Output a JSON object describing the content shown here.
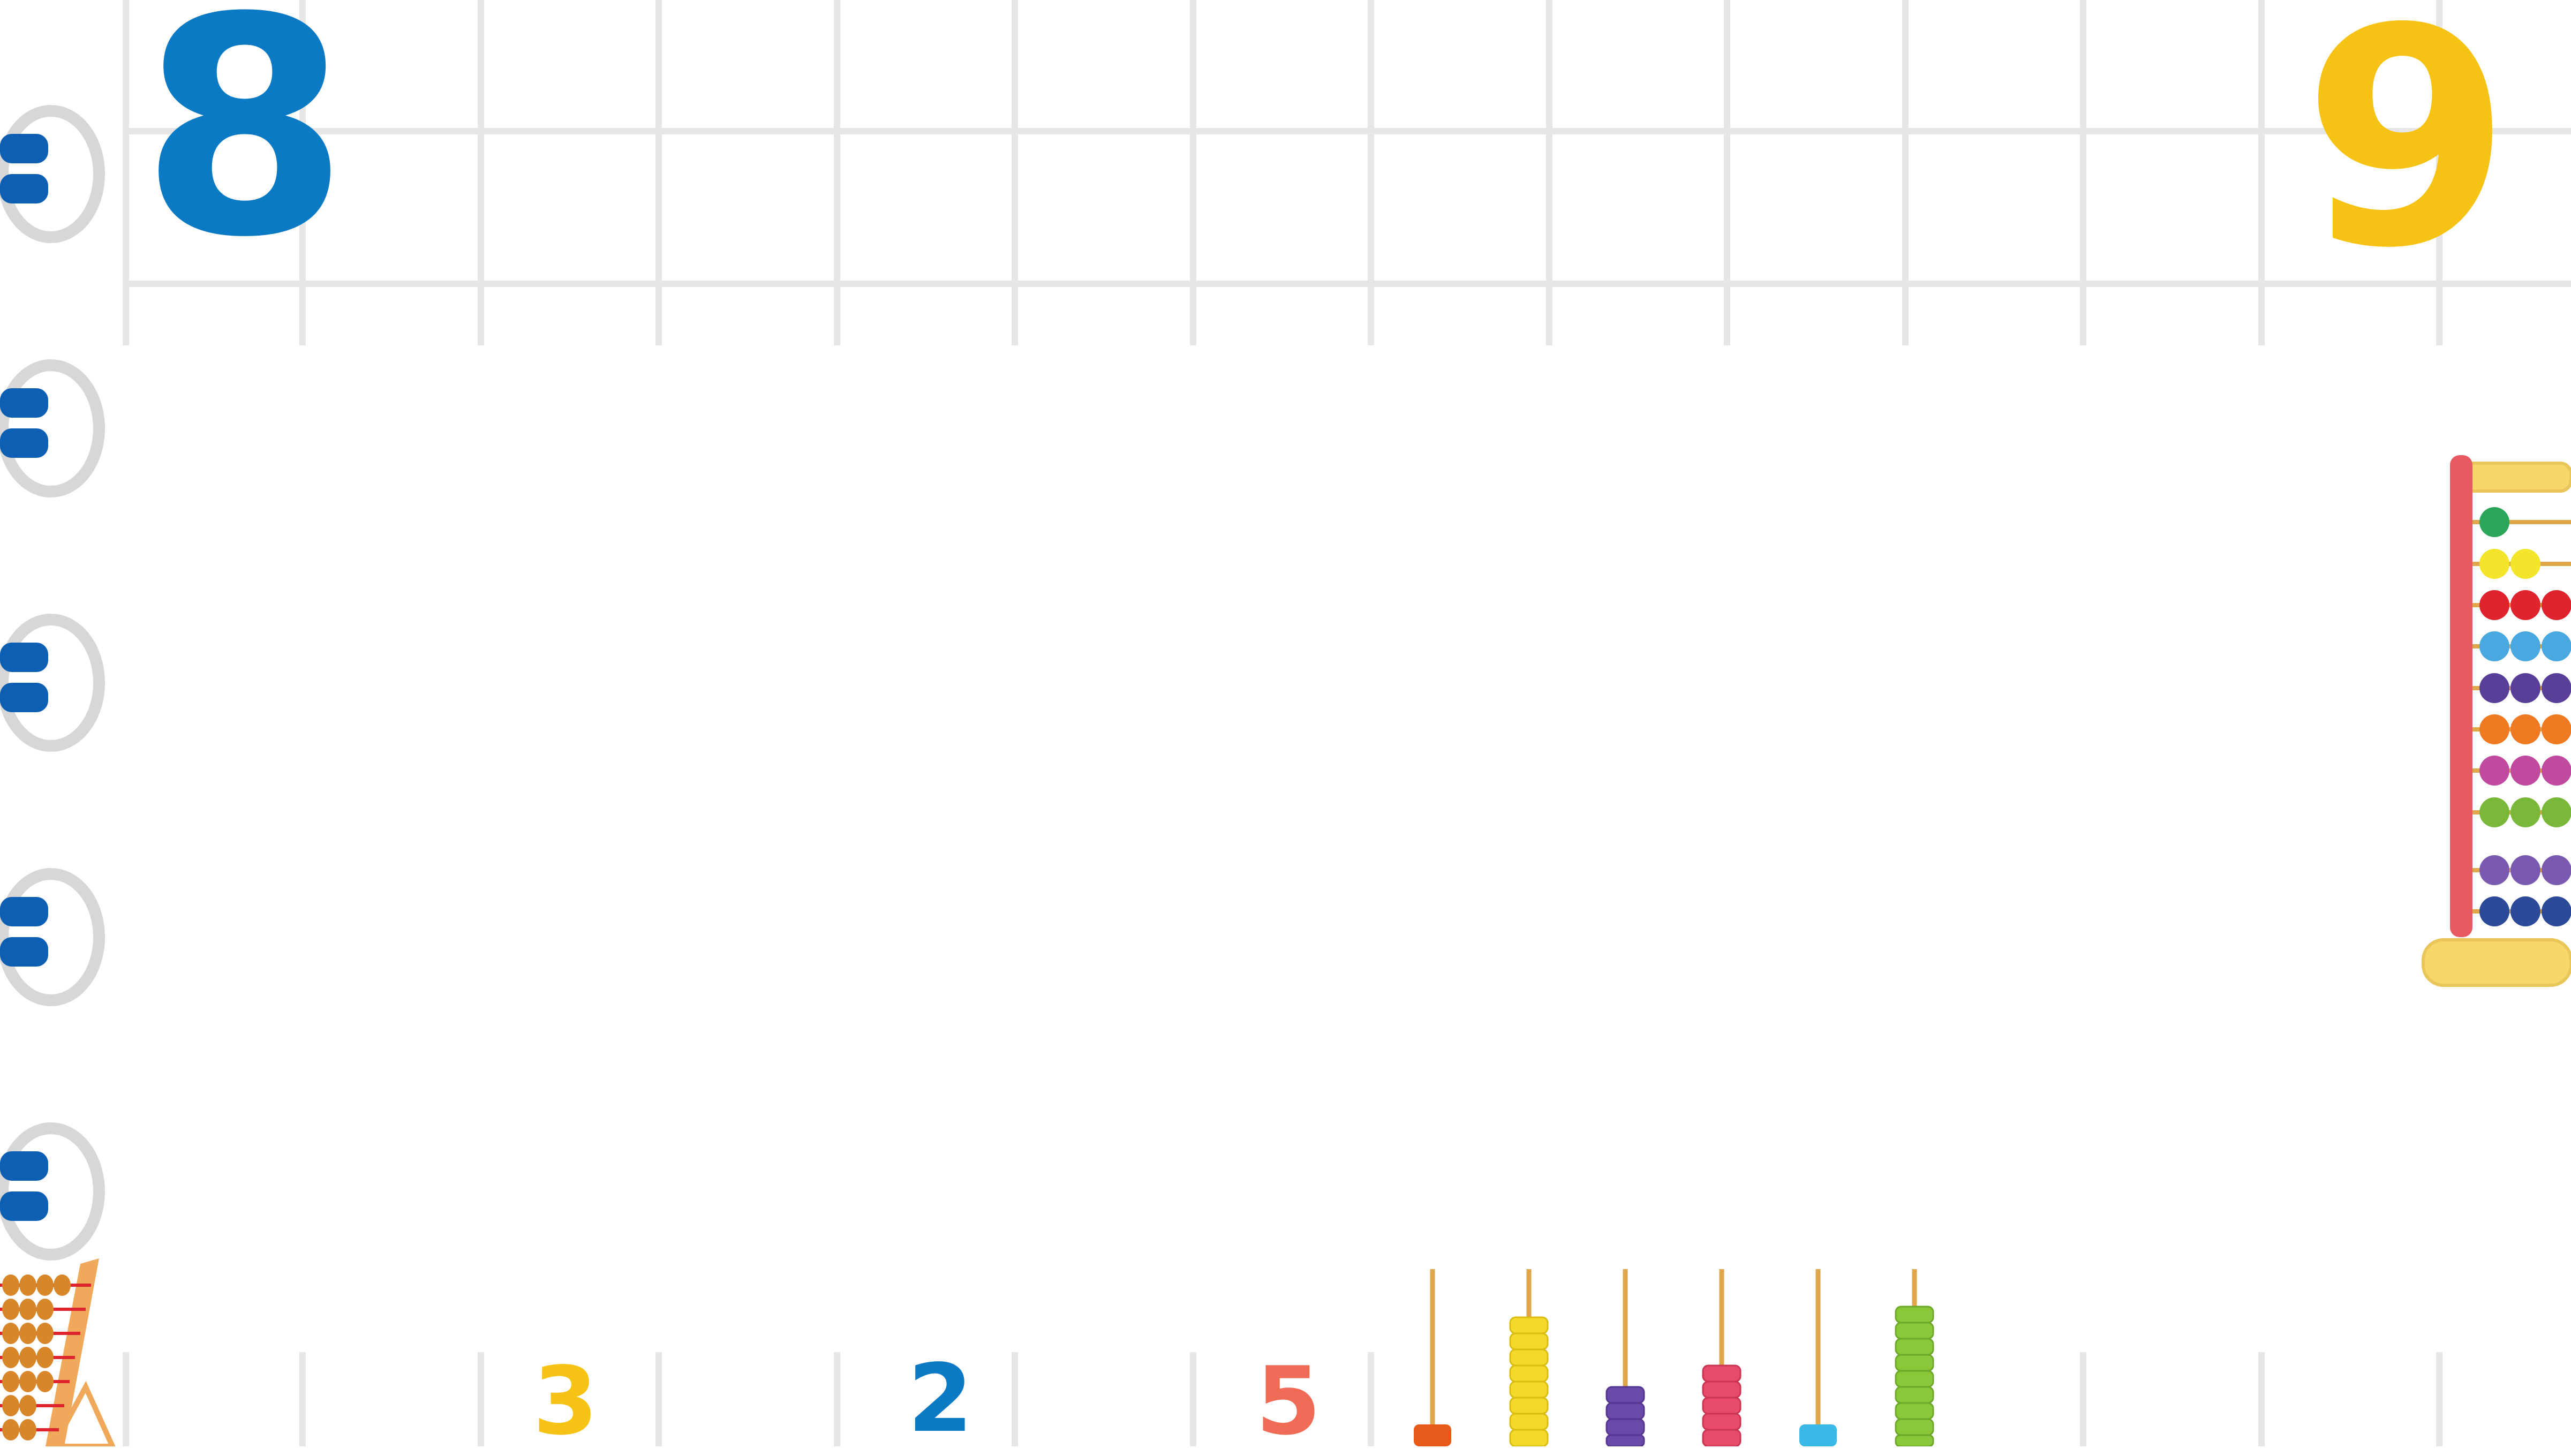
{
  "numerals": {
    "eight": "8",
    "nine": "9",
    "three": "3",
    "two": "2",
    "five": "5"
  },
  "colors": {
    "background": "#ffffff",
    "grid_line": "#e6e6e6",
    "eight": "#0a7ac4",
    "nine": "#f6c315",
    "three": "#f6c315",
    "two": "#0a7ac4",
    "five": "#ef6b55",
    "ring": "#d7d7d7",
    "ring_tab": "#0d5fb3",
    "abacus_frame": "#e85a62",
    "abacus_base": "#f7d76b"
  },
  "icons": {
    "binding_ring": "binding-ring-icon",
    "abacus_large": "abacus-icon",
    "abacus_small": "wooden-abacus-icon",
    "stacking_rods": "counting-rods-icon"
  }
}
